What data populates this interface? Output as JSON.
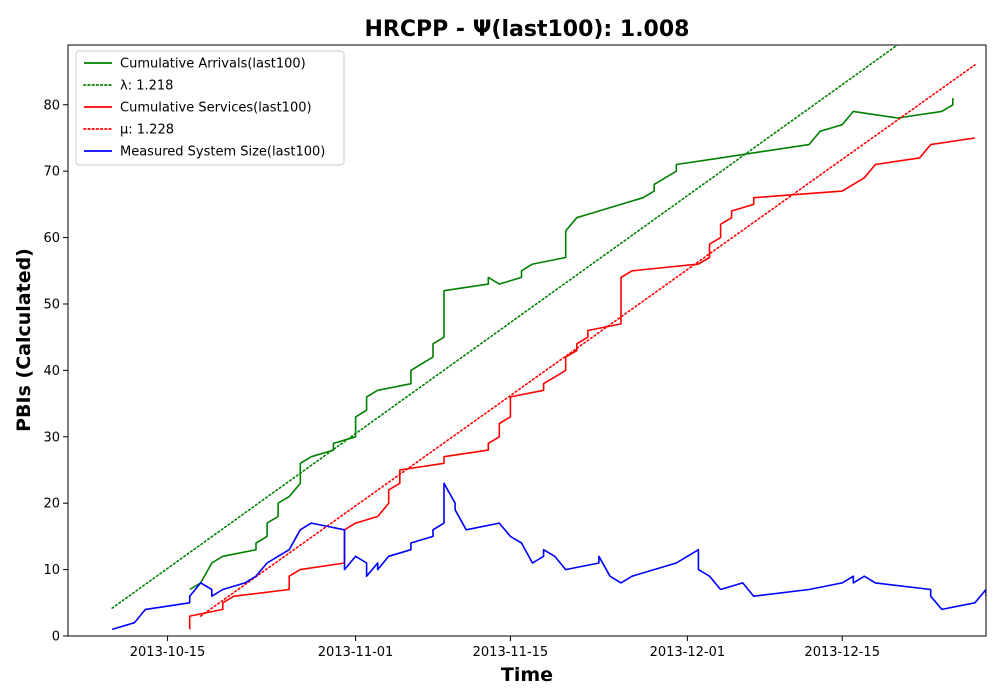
{
  "chart_data": {
    "type": "line",
    "title": "HRCPP -  Ψ(last100): 1.008",
    "xlabel": "Time",
    "ylabel": "PBIs (Calculated)",
    "x_type": "date",
    "xlim": [
      "2013-10-06",
      "2013-12-28"
    ],
    "ylim": [
      0,
      89
    ],
    "x_ticks": [
      "2013-10-15",
      "2013-11-01",
      "2013-11-15",
      "2013-12-01",
      "2013-12-15"
    ],
    "y_ticks": [
      0,
      10,
      20,
      30,
      40,
      50,
      60,
      70,
      80
    ],
    "grid": false,
    "legend_position": "top-left",
    "series": [
      {
        "name": "Cumulative Arrivals(last100)",
        "color": "#008000",
        "style": "solid",
        "points": [
          [
            "2013-10-17",
            7
          ],
          [
            "2013-10-18",
            8
          ],
          [
            "2013-10-19",
            11
          ],
          [
            "2013-10-20",
            12
          ],
          [
            "2013-10-23",
            13
          ],
          [
            "2013-10-23",
            14
          ],
          [
            "2013-10-24",
            15
          ],
          [
            "2013-10-24",
            17
          ],
          [
            "2013-10-25",
            18
          ],
          [
            "2013-10-25",
            20
          ],
          [
            "2013-10-26",
            21
          ],
          [
            "2013-10-27",
            23
          ],
          [
            "2013-10-27",
            26
          ],
          [
            "2013-10-28",
            27
          ],
          [
            "2013-10-30",
            28
          ],
          [
            "2013-10-30",
            29
          ],
          [
            "2013-11-01",
            30
          ],
          [
            "2013-11-01",
            32
          ],
          [
            "2013-11-01",
            33
          ],
          [
            "2013-11-02",
            34
          ],
          [
            "2013-11-02",
            36
          ],
          [
            "2013-11-03",
            37
          ],
          [
            "2013-11-06",
            38
          ],
          [
            "2013-11-06",
            40
          ],
          [
            "2013-11-07",
            41
          ],
          [
            "2013-11-08",
            42
          ],
          [
            "2013-11-08",
            44
          ],
          [
            "2013-11-09",
            45
          ],
          [
            "2013-11-09",
            49
          ],
          [
            "2013-11-09",
            52
          ],
          [
            "2013-11-13",
            53
          ],
          [
            "2013-11-13",
            54
          ],
          [
            "2013-11-14",
            53
          ],
          [
            "2013-11-16",
            54
          ],
          [
            "2013-11-16",
            55
          ],
          [
            "2013-11-17",
            56
          ],
          [
            "2013-11-20",
            57
          ],
          [
            "2013-11-20",
            61
          ],
          [
            "2013-11-21",
            63
          ],
          [
            "2013-11-23",
            64
          ],
          [
            "2013-11-27",
            66
          ],
          [
            "2013-11-28",
            67
          ],
          [
            "2013-11-28",
            68
          ],
          [
            "2013-11-30",
            70
          ],
          [
            "2013-11-30",
            71
          ],
          [
            "2013-12-04",
            72
          ],
          [
            "2013-12-08",
            73
          ],
          [
            "2013-12-12",
            74
          ],
          [
            "2013-12-13",
            76
          ],
          [
            "2013-12-15",
            77
          ],
          [
            "2013-12-16",
            79
          ],
          [
            "2013-12-20",
            78
          ],
          [
            "2013-12-24",
            79
          ],
          [
            "2013-12-25",
            80
          ],
          [
            "2013-12-25",
            81
          ]
        ]
      },
      {
        "name": "λ: 1.218",
        "color": "#008000",
        "style": "dotted",
        "points": [
          [
            "2013-10-10",
            4.2
          ],
          [
            "2013-12-20",
            89
          ]
        ]
      },
      {
        "name": "Cumulative Services(last100)",
        "color": "#ff0000",
        "style": "solid",
        "points": [
          [
            "2013-10-17",
            1
          ],
          [
            "2013-10-17",
            3
          ],
          [
            "2013-10-20",
            4
          ],
          [
            "2013-10-20",
            5
          ],
          [
            "2013-10-21",
            6
          ],
          [
            "2013-10-26",
            7
          ],
          [
            "2013-10-26",
            9
          ],
          [
            "2013-10-27",
            10
          ],
          [
            "2013-10-31",
            11
          ],
          [
            "2013-10-31",
            16
          ],
          [
            "2013-11-01",
            17
          ],
          [
            "2013-11-03",
            18
          ],
          [
            "2013-11-04",
            20
          ],
          [
            "2013-11-04",
            22
          ],
          [
            "2013-11-05",
            23
          ],
          [
            "2013-11-05",
            25
          ],
          [
            "2013-11-09",
            26
          ],
          [
            "2013-11-09",
            27
          ],
          [
            "2013-11-13",
            28
          ],
          [
            "2013-11-13",
            29
          ],
          [
            "2013-11-14",
            30
          ],
          [
            "2013-11-14",
            32
          ],
          [
            "2013-11-15",
            33
          ],
          [
            "2013-11-15",
            36
          ],
          [
            "2013-11-18",
            37
          ],
          [
            "2013-11-18",
            38
          ],
          [
            "2013-11-20",
            40
          ],
          [
            "2013-11-20",
            42
          ],
          [
            "2013-11-21",
            43
          ],
          [
            "2013-11-21",
            44
          ],
          [
            "2013-11-22",
            45
          ],
          [
            "2013-11-22",
            46
          ],
          [
            "2013-11-25",
            47
          ],
          [
            "2013-11-25",
            54
          ],
          [
            "2013-11-26",
            55
          ],
          [
            "2013-12-02",
            56
          ],
          [
            "2013-12-03",
            57
          ],
          [
            "2013-12-03",
            59
          ],
          [
            "2013-12-04",
            60
          ],
          [
            "2013-12-04",
            62
          ],
          [
            "2013-12-05",
            63
          ],
          [
            "2013-12-05",
            64
          ],
          [
            "2013-12-07",
            65
          ],
          [
            "2013-12-07",
            66
          ],
          [
            "2013-12-15",
            67
          ],
          [
            "2013-12-16",
            68
          ],
          [
            "2013-12-17",
            69
          ],
          [
            "2013-12-18",
            71
          ],
          [
            "2013-12-22",
            72
          ],
          [
            "2013-12-23",
            74
          ],
          [
            "2013-12-27",
            75
          ]
        ]
      },
      {
        "name": "μ: 1.228",
        "color": "#ff0000",
        "style": "dotted",
        "points": [
          [
            "2013-10-18",
            3
          ],
          [
            "2013-12-27",
            86
          ]
        ]
      },
      {
        "name": "Measured System Size(last100)",
        "color": "#0000ff",
        "style": "solid",
        "points": [
          [
            "2013-10-10",
            1
          ],
          [
            "2013-10-12",
            2
          ],
          [
            "2013-10-13",
            4
          ],
          [
            "2013-10-17",
            5
          ],
          [
            "2013-10-17",
            6
          ],
          [
            "2013-10-18",
            8
          ],
          [
            "2013-10-19",
            7
          ],
          [
            "2013-10-19",
            6
          ],
          [
            "2013-10-20",
            7
          ],
          [
            "2013-10-22",
            8
          ],
          [
            "2013-10-23",
            9
          ],
          [
            "2013-10-24",
            11
          ],
          [
            "2013-10-25",
            12
          ],
          [
            "2013-10-26",
            13
          ],
          [
            "2013-10-27",
            16
          ],
          [
            "2013-10-28",
            17
          ],
          [
            "2013-10-31",
            16
          ],
          [
            "2013-10-31",
            10
          ],
          [
            "2013-11-01",
            12
          ],
          [
            "2013-11-02",
            11
          ],
          [
            "2013-11-02",
            9
          ],
          [
            "2013-11-03",
            11
          ],
          [
            "2013-11-03",
            10
          ],
          [
            "2013-11-04",
            12
          ],
          [
            "2013-11-06",
            13
          ],
          [
            "2013-11-06",
            14
          ],
          [
            "2013-11-08",
            15
          ],
          [
            "2013-11-08",
            16
          ],
          [
            "2013-11-09",
            17
          ],
          [
            "2013-11-09",
            23
          ],
          [
            "2013-11-10",
            20
          ],
          [
            "2013-11-10",
            19
          ],
          [
            "2013-11-11",
            16
          ],
          [
            "2013-11-14",
            17
          ],
          [
            "2013-11-15",
            15
          ],
          [
            "2013-11-16",
            14
          ],
          [
            "2013-11-17",
            11
          ],
          [
            "2013-11-18",
            12
          ],
          [
            "2013-11-18",
            13
          ],
          [
            "2013-11-19",
            12
          ],
          [
            "2013-11-20",
            10
          ],
          [
            "2013-11-23",
            11
          ],
          [
            "2013-11-23",
            12
          ],
          [
            "2013-11-24",
            9
          ],
          [
            "2013-11-25",
            8
          ],
          [
            "2013-11-26",
            9
          ],
          [
            "2013-11-30",
            11
          ],
          [
            "2013-12-01",
            12
          ],
          [
            "2013-12-02",
            13
          ],
          [
            "2013-12-02",
            10
          ],
          [
            "2013-12-03",
            9
          ],
          [
            "2013-12-04",
            7
          ],
          [
            "2013-12-06",
            8
          ],
          [
            "2013-12-07",
            6
          ],
          [
            "2013-12-12",
            7
          ],
          [
            "2013-12-15",
            8
          ],
          [
            "2013-12-16",
            9
          ],
          [
            "2013-12-16",
            8
          ],
          [
            "2013-12-17",
            9
          ],
          [
            "2013-12-18",
            8
          ],
          [
            "2013-12-23",
            7
          ],
          [
            "2013-12-23",
            6
          ],
          [
            "2013-12-24",
            4
          ],
          [
            "2013-12-27",
            5
          ],
          [
            "2013-12-28",
            7
          ],
          [
            "2013-12-28",
            6
          ]
        ]
      }
    ]
  }
}
